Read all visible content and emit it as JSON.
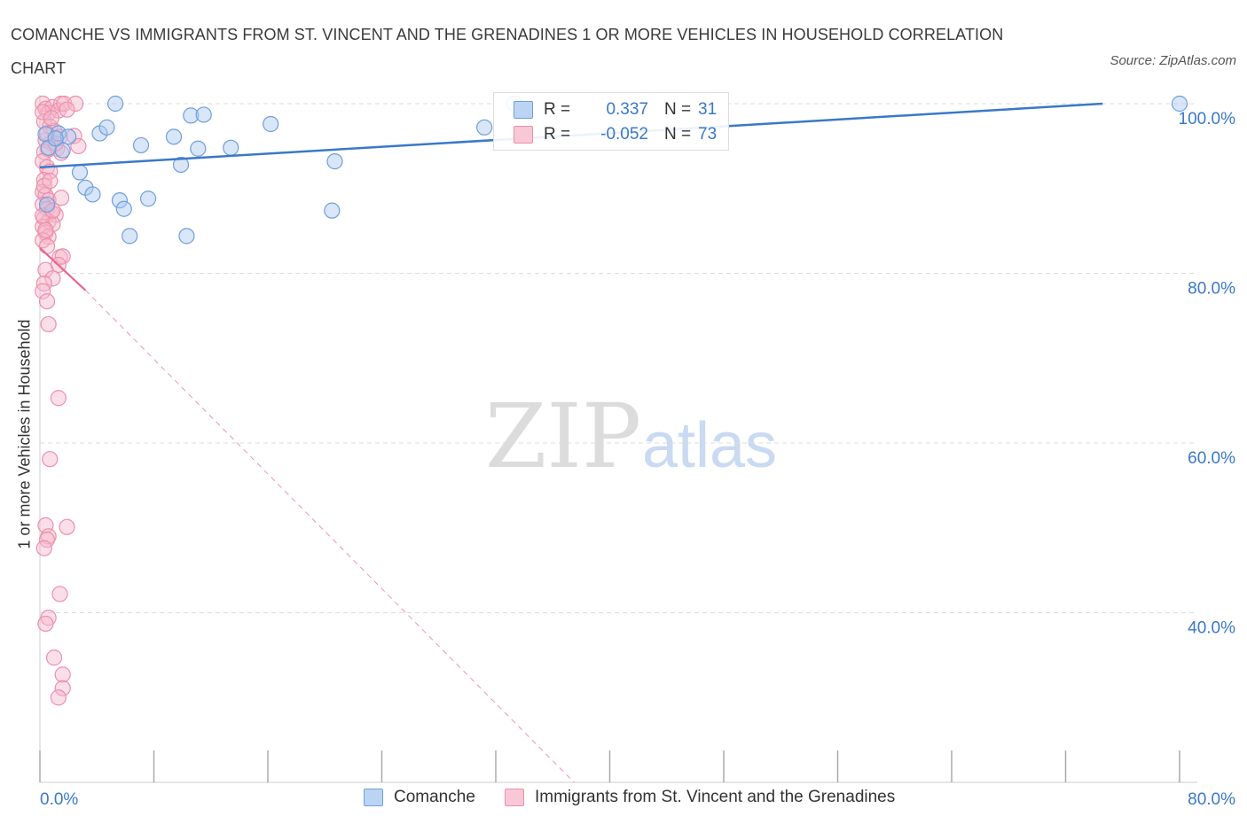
{
  "title": "COMANCHE VS IMMIGRANTS FROM ST. VINCENT AND THE GRENADINES 1 OR MORE VEHICLES IN HOUSEHOLD CORRELATION CHART",
  "source": "Source: ZipAtlas.com",
  "watermark": {
    "zip": "ZIP",
    "atlas": "atlas"
  },
  "legend": {
    "r_label": "R =",
    "n_label": "N =",
    "series1": {
      "r": "0.337",
      "n": "31"
    },
    "series2": {
      "r": "-0.052",
      "n": "73"
    }
  },
  "colors": {
    "blue_fill": "#a9c8f0",
    "blue_stroke": "#6f9fdc",
    "blue_line": "#3a78c9",
    "pink_fill": "#f6b8cb",
    "pink_stroke": "#ec8fab",
    "pink_line": "#e8668f",
    "axis_text": "#3a78c9",
    "grid": "#dddddd"
  },
  "chart_data": {
    "type": "scatter",
    "title": "COMANCHE VS IMMIGRANTS FROM ST. VINCENT AND THE GRENADINES 1 OR MORE VEHICLES IN HOUSEHOLD CORRELATION CHART",
    "xlabel": "",
    "ylabel": "1 or more Vehicles in Household",
    "xlim": [
      0,
      80
    ],
    "ylim": [
      20,
      100
    ],
    "x_tick_labels": [
      "0.0%",
      "80.0%"
    ],
    "y_tick_labels": [
      "100.0%",
      "80.0%",
      "60.0%",
      "40.0%"
    ],
    "y_ticks": [
      100,
      80,
      60,
      40
    ],
    "grid": true,
    "legend_position": "bottom",
    "series": [
      {
        "name": "Comanche",
        "color": "#a9c8f0",
        "trend": {
          "x": [
            0,
            74.6
          ],
          "y": [
            92.5,
            100
          ]
        },
        "points": [
          [
            0.5,
            88.1
          ],
          [
            1.3,
            96.5
          ],
          [
            2.0,
            96.1
          ],
          [
            2.8,
            91.9
          ],
          [
            3.2,
            90.1
          ],
          [
            3.7,
            89.3
          ],
          [
            4.2,
            96.5
          ],
          [
            4.7,
            97.2
          ],
          [
            5.3,
            100
          ],
          [
            5.6,
            88.6
          ],
          [
            5.9,
            87.6
          ],
          [
            6.3,
            84.4
          ],
          [
            7.1,
            95.1
          ],
          [
            7.6,
            88.8
          ],
          [
            9.4,
            96.1
          ],
          [
            9.9,
            92.8
          ],
          [
            10.3,
            84.4
          ],
          [
            10.6,
            98.6
          ],
          [
            11.1,
            94.7
          ],
          [
            11.5,
            98.7
          ],
          [
            13.4,
            94.8
          ],
          [
            16.2,
            97.6
          ],
          [
            20.5,
            87.4
          ],
          [
            20.7,
            93.2
          ],
          [
            31.2,
            97.2
          ],
          [
            33.3,
            100
          ],
          [
            80.0,
            100
          ],
          [
            0.4,
            96.4
          ],
          [
            1.6,
            94.5
          ],
          [
            0.6,
            94.8
          ],
          [
            1.1,
            95.9
          ]
        ]
      },
      {
        "name": "Immigrants from St. Vincent and the Grenadines",
        "color": "#f6b8cb",
        "trend_solid": {
          "x": [
            0,
            3.2
          ],
          "y": [
            83.0,
            78.0
          ]
        },
        "trend_dashed": {
          "x": [
            3.2,
            37.5
          ],
          "y": [
            78.0,
            20.0
          ]
        },
        "points": [
          [
            0.2,
            100
          ],
          [
            0.4,
            99.4
          ],
          [
            0.6,
            98.9
          ],
          [
            0.9,
            99.6
          ],
          [
            1.3,
            99.2
          ],
          [
            1.5,
            100
          ],
          [
            1.7,
            100
          ],
          [
            2.5,
            100
          ],
          [
            0.3,
            97.9
          ],
          [
            0.7,
            97.3
          ],
          [
            1.0,
            96.8
          ],
          [
            1.4,
            96.1
          ],
          [
            2.4,
            96.2
          ],
          [
            0.4,
            95.7
          ],
          [
            0.8,
            95.4
          ],
          [
            1.2,
            94.7
          ],
          [
            2.7,
            95.0
          ],
          [
            0.3,
            94.3
          ],
          [
            0.6,
            94.6
          ],
          [
            1.5,
            94.2
          ],
          [
            0.2,
            93.2
          ],
          [
            0.5,
            92.5
          ],
          [
            0.7,
            92.0
          ],
          [
            0.3,
            91.0
          ],
          [
            0.2,
            89.6
          ],
          [
            0.4,
            89.2
          ],
          [
            0.6,
            88.6
          ],
          [
            1.5,
            88.9
          ],
          [
            0.2,
            88.1
          ],
          [
            0.5,
            87.6
          ],
          [
            0.8,
            87.2
          ],
          [
            1.1,
            86.9
          ],
          [
            0.3,
            86.5
          ],
          [
            0.6,
            86.1
          ],
          [
            0.9,
            85.8
          ],
          [
            0.2,
            85.5
          ],
          [
            0.4,
            84.8
          ],
          [
            0.6,
            84.3
          ],
          [
            0.2,
            83.9
          ],
          [
            0.5,
            83.2
          ],
          [
            1.4,
            81.9
          ],
          [
            1.6,
            82.0
          ],
          [
            1.3,
            81.0
          ],
          [
            0.4,
            80.4
          ],
          [
            0.9,
            79.4
          ],
          [
            0.3,
            78.8
          ],
          [
            0.2,
            77.9
          ],
          [
            0.5,
            76.7
          ],
          [
            0.6,
            74.0
          ],
          [
            1.3,
            65.3
          ],
          [
            0.7,
            58.1
          ],
          [
            0.4,
            50.3
          ],
          [
            1.9,
            50.1
          ],
          [
            0.6,
            49.0
          ],
          [
            0.5,
            48.6
          ],
          [
            0.3,
            47.6
          ],
          [
            1.4,
            42.2
          ],
          [
            0.6,
            39.4
          ],
          [
            0.4,
            38.7
          ],
          [
            1.0,
            34.7
          ],
          [
            1.6,
            32.7
          ],
          [
            1.6,
            31.1
          ],
          [
            1.3,
            30.0
          ],
          [
            0.2,
            99.0
          ],
          [
            0.8,
            98.3
          ],
          [
            1.9,
            99.3
          ],
          [
            0.5,
            96.5
          ],
          [
            1.1,
            95.3
          ],
          [
            0.3,
            90.3
          ],
          [
            0.7,
            90.9
          ],
          [
            0.2,
            86.8
          ],
          [
            0.9,
            87.4
          ],
          [
            0.4,
            85.1
          ]
        ]
      }
    ]
  }
}
